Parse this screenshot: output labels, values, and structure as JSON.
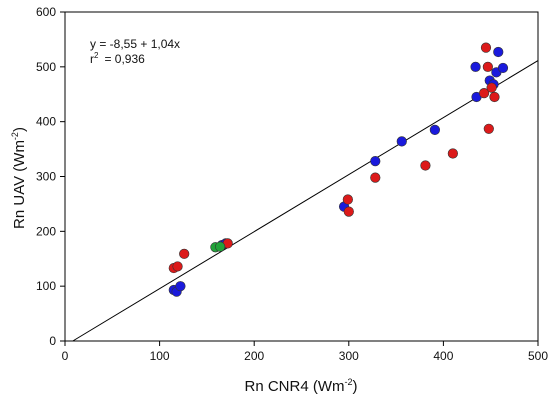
{
  "chart_data": {
    "type": "scatter",
    "xlabel_base": "Rn CNR4 (Wm",
    "xlabel_sup": "-2",
    "xlabel_end": ")",
    "ylabel_base": "Rn UAV (Wm",
    "ylabel_sup": "-2",
    "ylabel_end": ")",
    "xlim": [
      0,
      500
    ],
    "ylim": [
      0,
      600
    ],
    "xticks": [
      0,
      100,
      200,
      300,
      400,
      500
    ],
    "yticks": [
      0,
      100,
      200,
      300,
      400,
      500,
      600
    ],
    "grid": false,
    "annotation": {
      "equation": "y = -8,55 + 1,04x",
      "r2_label": "r",
      "r2_sup": "2",
      "r2_value": "= 0,936"
    },
    "regression": {
      "intercept": -8.55,
      "slope": 1.04
    },
    "colors": {
      "blue": "#1a1adc",
      "red": "#dc1a1a",
      "green": "#22a33a",
      "edge": "#333333"
    },
    "series": [
      {
        "color_key": "blue",
        "points": [
          [
            115,
            93
          ],
          [
            118,
            90
          ],
          [
            122,
            100
          ],
          [
            166,
            175
          ],
          [
            170,
            178
          ],
          [
            295,
            245
          ],
          [
            328,
            328
          ],
          [
            356,
            364
          ],
          [
            391,
            385
          ],
          [
            434,
            500
          ],
          [
            435,
            445
          ],
          [
            449,
            475
          ],
          [
            453,
            468
          ],
          [
            456,
            490
          ],
          [
            458,
            527
          ],
          [
            463,
            498
          ]
        ]
      },
      {
        "color_key": "red",
        "points": [
          [
            115,
            133
          ],
          [
            119,
            136
          ],
          [
            126,
            159
          ],
          [
            172,
            178
          ],
          [
            299,
            258
          ],
          [
            300,
            236
          ],
          [
            328,
            298
          ],
          [
            381,
            320
          ],
          [
            410,
            342
          ],
          [
            443,
            452
          ],
          [
            445,
            535
          ],
          [
            447,
            500
          ],
          [
            448,
            387
          ],
          [
            451,
            462
          ],
          [
            454,
            445
          ]
        ]
      },
      {
        "color_key": "green",
        "points": [
          [
            159,
            171
          ],
          [
            164,
            172
          ]
        ]
      }
    ]
  }
}
